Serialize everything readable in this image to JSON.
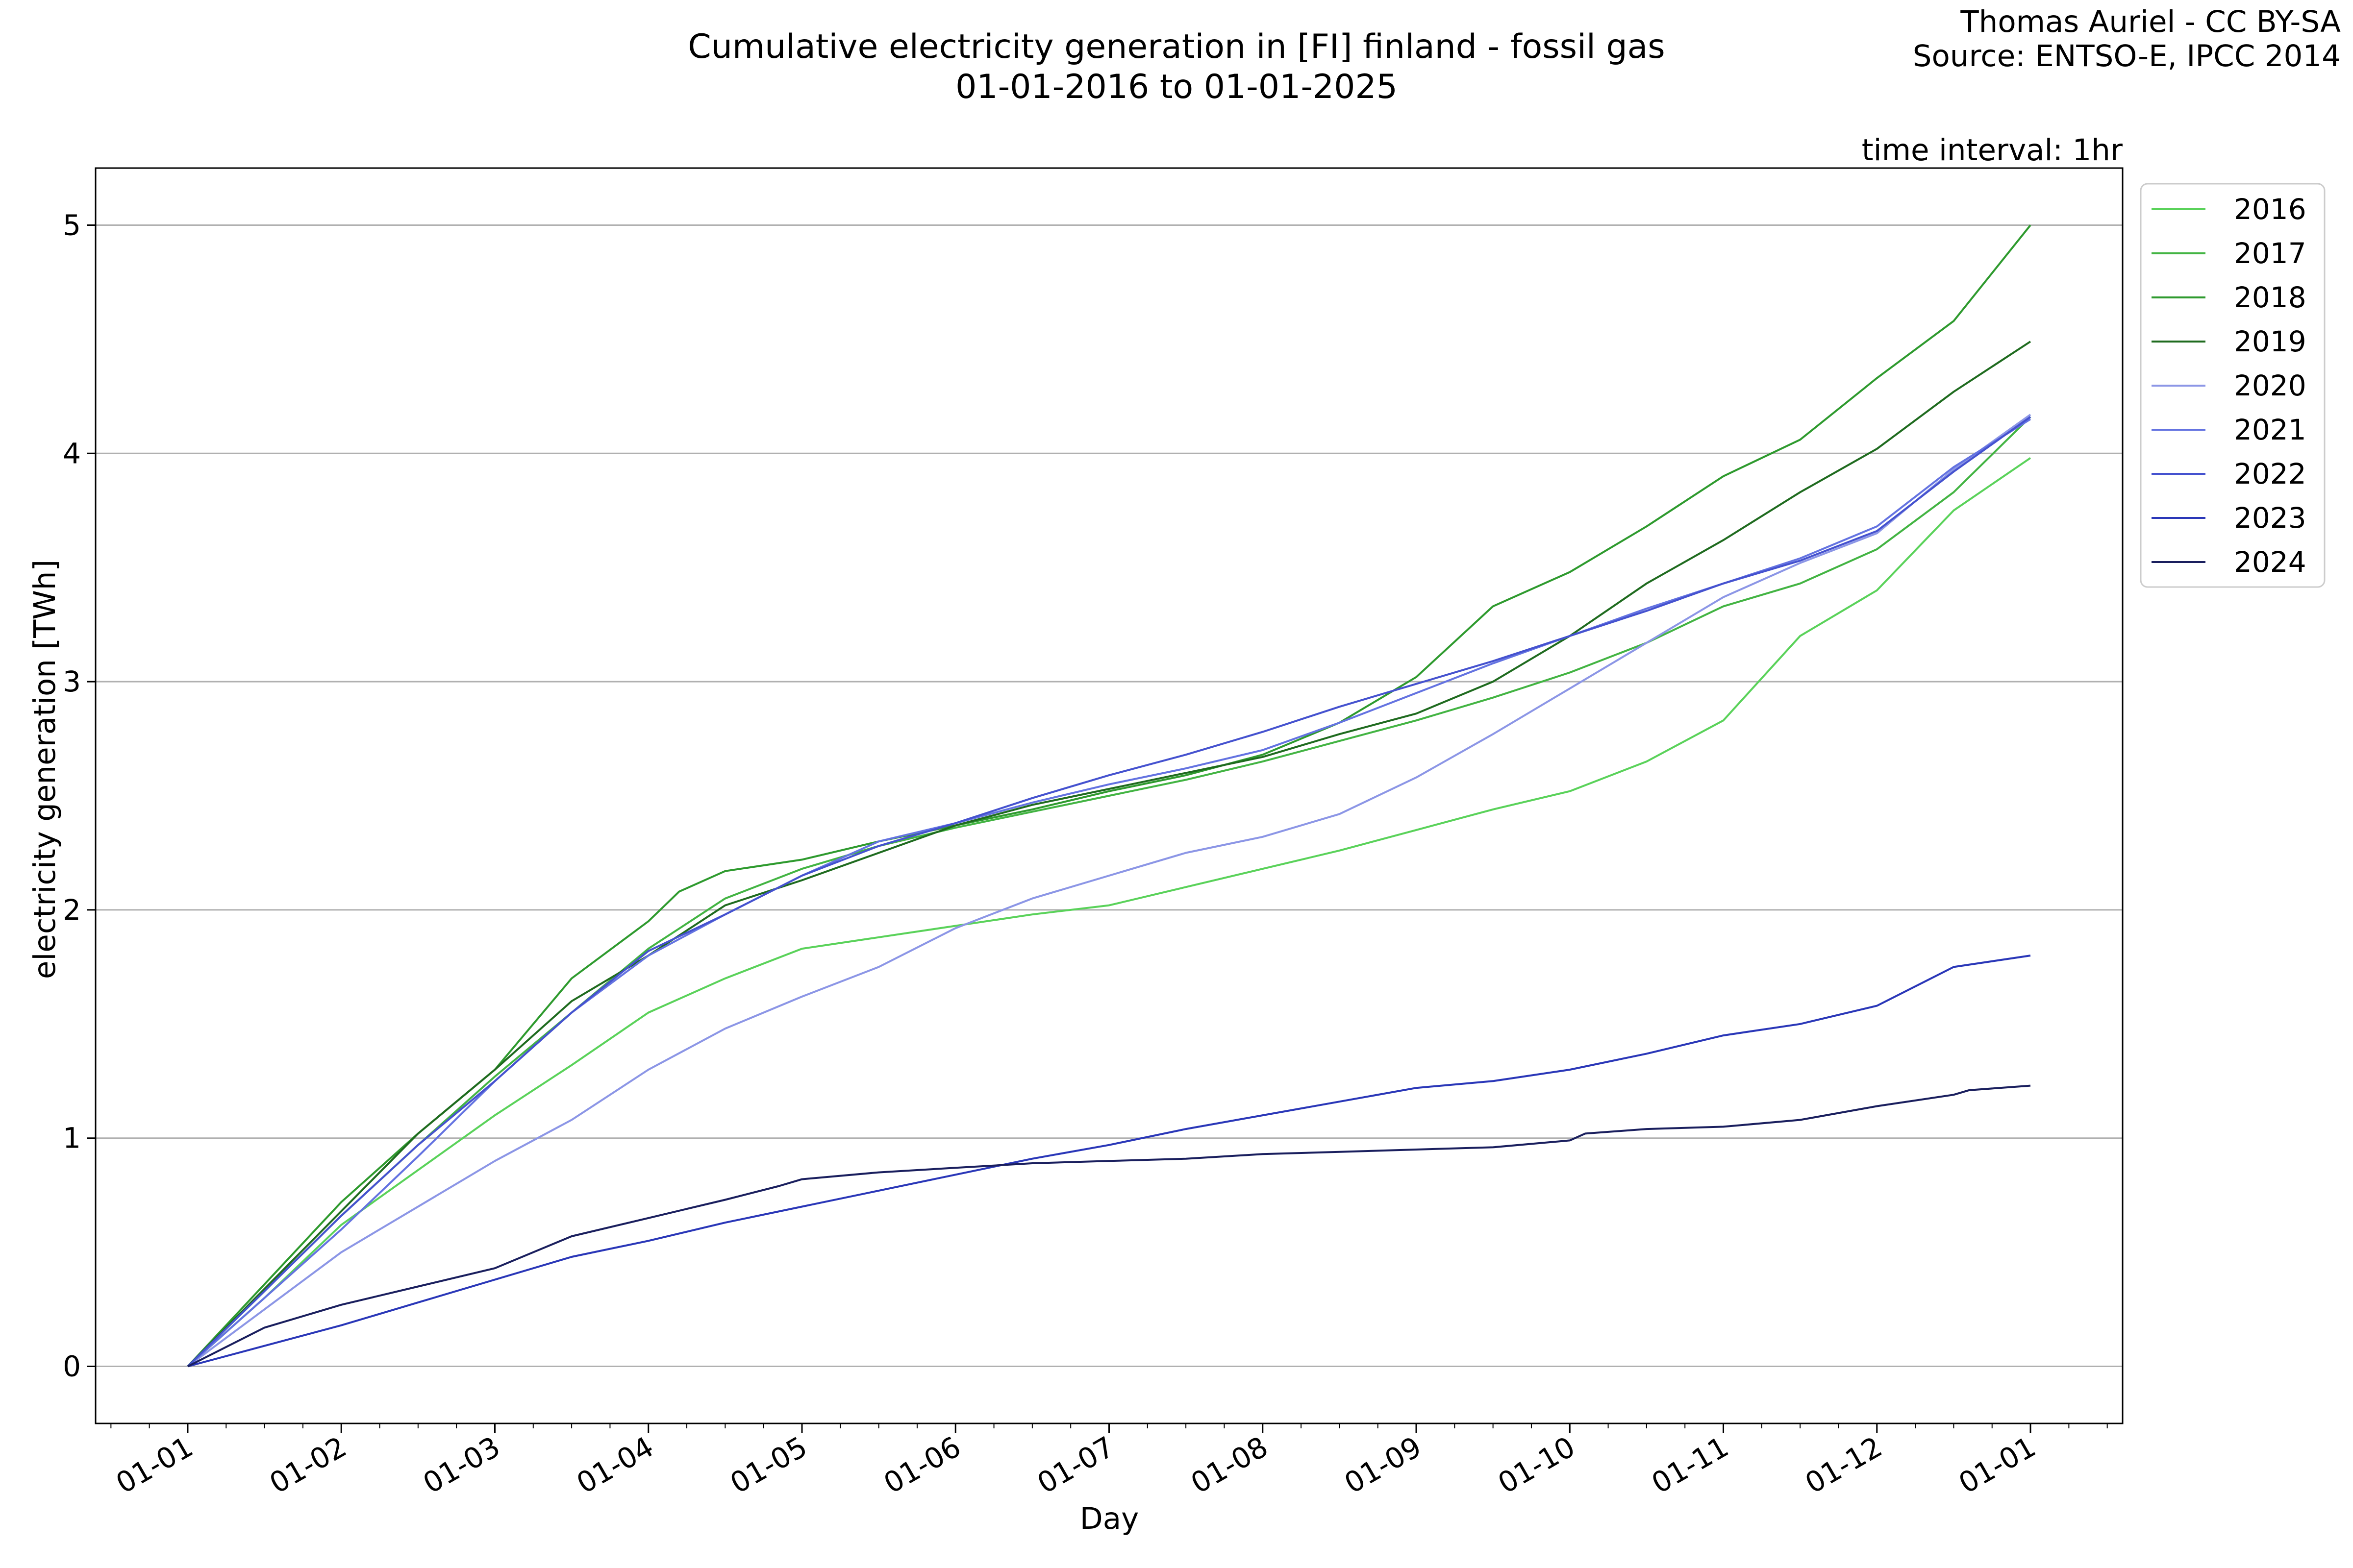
{
  "chart_data": {
    "type": "line",
    "title": "Cumulative electricity generation in [FI] finland - fossil gas",
    "subtitle": "01-01-2016 to 01-01-2025",
    "credit_author": "Thomas Auriel - CC BY-SA",
    "credit_source": "Source: ENTSO-E, IPCC 2014",
    "annotation": "time interval: 1hr",
    "xlabel": "Day",
    "ylabel": "electricity generation [TWh]",
    "x_unit": "month of year",
    "xlim": [
      0.4,
      13.6
    ],
    "ylim": [
      -0.25,
      5.25
    ],
    "x_ticks": [
      {
        "value": 1,
        "label": "01-01"
      },
      {
        "value": 2,
        "label": "01-02"
      },
      {
        "value": 3,
        "label": "01-03"
      },
      {
        "value": 4,
        "label": "01-04"
      },
      {
        "value": 5,
        "label": "01-05"
      },
      {
        "value": 6,
        "label": "01-06"
      },
      {
        "value": 7,
        "label": "01-07"
      },
      {
        "value": 8,
        "label": "01-08"
      },
      {
        "value": 9,
        "label": "01-09"
      },
      {
        "value": 10,
        "label": "01-10"
      },
      {
        "value": 11,
        "label": "01-11"
      },
      {
        "value": 12,
        "label": "01-12"
      },
      {
        "value": 13,
        "label": "01-01"
      }
    ],
    "y_ticks": [
      0,
      1,
      2,
      3,
      4,
      5
    ],
    "grid": "horizontal",
    "legend_position": "outside-top-right",
    "series": [
      {
        "name": "2016",
        "color": "#5ad25a",
        "points": [
          [
            1,
            0
          ],
          [
            1.5,
            0.3
          ],
          [
            2,
            0.62
          ],
          [
            2.5,
            0.86
          ],
          [
            3,
            1.1
          ],
          [
            3.5,
            1.32
          ],
          [
            4,
            1.55
          ],
          [
            4.5,
            1.7
          ],
          [
            5,
            1.83
          ],
          [
            5.5,
            1.88
          ],
          [
            6,
            1.93
          ],
          [
            6.5,
            1.98
          ],
          [
            7,
            2.02
          ],
          [
            7.5,
            2.1
          ],
          [
            8,
            2.18
          ],
          [
            8.5,
            2.26
          ],
          [
            9,
            2.35
          ],
          [
            9.5,
            2.44
          ],
          [
            10,
            2.52
          ],
          [
            10.5,
            2.65
          ],
          [
            11,
            2.83
          ],
          [
            11.5,
            3.2
          ],
          [
            12,
            3.4
          ],
          [
            12.5,
            3.75
          ],
          [
            13,
            3.98
          ]
        ]
      },
      {
        "name": "2017",
        "color": "#43b443",
        "points": [
          [
            1,
            0
          ],
          [
            1.5,
            0.33
          ],
          [
            2,
            0.66
          ],
          [
            2.5,
            0.97
          ],
          [
            3,
            1.27
          ],
          [
            3.5,
            1.55
          ],
          [
            4,
            1.83
          ],
          [
            4.5,
            2.05
          ],
          [
            5,
            2.18
          ],
          [
            5.5,
            2.28
          ],
          [
            6,
            2.36
          ],
          [
            6.5,
            2.43
          ],
          [
            7,
            2.5
          ],
          [
            7.5,
            2.57
          ],
          [
            8,
            2.65
          ],
          [
            8.5,
            2.74
          ],
          [
            9,
            2.83
          ],
          [
            9.5,
            2.93
          ],
          [
            10,
            3.04
          ],
          [
            10.5,
            3.17
          ],
          [
            11,
            3.33
          ],
          [
            11.5,
            3.43
          ],
          [
            12,
            3.58
          ],
          [
            12.5,
            3.83
          ],
          [
            13,
            4.16
          ]
        ]
      },
      {
        "name": "2018",
        "color": "#2e9a2e",
        "points": [
          [
            1,
            0
          ],
          [
            1.5,
            0.36
          ],
          [
            2,
            0.72
          ],
          [
            2.5,
            1.02
          ],
          [
            3,
            1.3
          ],
          [
            3.5,
            1.7
          ],
          [
            4,
            1.95
          ],
          [
            4.2,
            2.08
          ],
          [
            4.5,
            2.17
          ],
          [
            5,
            2.22
          ],
          [
            5.5,
            2.3
          ],
          [
            6,
            2.37
          ],
          [
            6.5,
            2.44
          ],
          [
            7,
            2.52
          ],
          [
            7.5,
            2.59
          ],
          [
            8,
            2.68
          ],
          [
            8.5,
            2.82
          ],
          [
            9,
            3.02
          ],
          [
            9.5,
            3.33
          ],
          [
            10,
            3.48
          ],
          [
            10.5,
            3.68
          ],
          [
            11,
            3.9
          ],
          [
            11.5,
            4.06
          ],
          [
            12,
            4.33
          ],
          [
            12.5,
            4.58
          ],
          [
            13,
            5.0
          ]
        ]
      },
      {
        "name": "2019",
        "color": "#1f6b1f",
        "points": [
          [
            1,
            0
          ],
          [
            1.5,
            0.34
          ],
          [
            2,
            0.68
          ],
          [
            2.5,
            1.02
          ],
          [
            3,
            1.3
          ],
          [
            3.5,
            1.6
          ],
          [
            4,
            1.8
          ],
          [
            4.5,
            2.02
          ],
          [
            5,
            2.13
          ],
          [
            5.5,
            2.25
          ],
          [
            6,
            2.37
          ],
          [
            6.5,
            2.46
          ],
          [
            7,
            2.53
          ],
          [
            7.5,
            2.6
          ],
          [
            8,
            2.67
          ],
          [
            8.5,
            2.77
          ],
          [
            9,
            2.86
          ],
          [
            9.5,
            3.0
          ],
          [
            10,
            3.2
          ],
          [
            10.5,
            3.43
          ],
          [
            11,
            3.62
          ],
          [
            11.5,
            3.83
          ],
          [
            12,
            4.02
          ],
          [
            12.5,
            4.27
          ],
          [
            13,
            4.49
          ]
        ]
      },
      {
        "name": "2020",
        "color": "#8c96e6",
        "points": [
          [
            1,
            0
          ],
          [
            1.5,
            0.25
          ],
          [
            2,
            0.5
          ],
          [
            2.5,
            0.7
          ],
          [
            3,
            0.9
          ],
          [
            3.5,
            1.08
          ],
          [
            4,
            1.3
          ],
          [
            4.5,
            1.48
          ],
          [
            5,
            1.62
          ],
          [
            5.5,
            1.75
          ],
          [
            6,
            1.92
          ],
          [
            6.5,
            2.05
          ],
          [
            7,
            2.15
          ],
          [
            7.5,
            2.25
          ],
          [
            8,
            2.32
          ],
          [
            8.5,
            2.42
          ],
          [
            9,
            2.58
          ],
          [
            9.5,
            2.77
          ],
          [
            10,
            2.97
          ],
          [
            10.5,
            3.17
          ],
          [
            11,
            3.37
          ],
          [
            11.5,
            3.52
          ],
          [
            12,
            3.65
          ],
          [
            12.5,
            3.93
          ],
          [
            13,
            4.17
          ]
        ]
      },
      {
        "name": "2021",
        "color": "#6473e1",
        "points": [
          [
            1,
            0
          ],
          [
            1.5,
            0.3
          ],
          [
            2,
            0.6
          ],
          [
            2.5,
            0.92
          ],
          [
            3,
            1.25
          ],
          [
            3.5,
            1.55
          ],
          [
            4,
            1.8
          ],
          [
            4.5,
            1.98
          ],
          [
            5,
            2.15
          ],
          [
            5.5,
            2.3
          ],
          [
            6,
            2.38
          ],
          [
            6.5,
            2.47
          ],
          [
            7,
            2.55
          ],
          [
            7.5,
            2.62
          ],
          [
            8,
            2.7
          ],
          [
            8.5,
            2.82
          ],
          [
            9,
            2.95
          ],
          [
            9.5,
            3.08
          ],
          [
            10,
            3.2
          ],
          [
            10.5,
            3.32
          ],
          [
            11,
            3.43
          ],
          [
            11.5,
            3.54
          ],
          [
            12,
            3.68
          ],
          [
            12.5,
            3.94
          ],
          [
            13,
            4.15
          ]
        ]
      },
      {
        "name": "2022",
        "color": "#4552cf",
        "points": [
          [
            1,
            0
          ],
          [
            1.5,
            0.33
          ],
          [
            2,
            0.66
          ],
          [
            2.5,
            0.97
          ],
          [
            3,
            1.25
          ],
          [
            3.5,
            1.55
          ],
          [
            4,
            1.82
          ],
          [
            4.5,
            1.98
          ],
          [
            5,
            2.15
          ],
          [
            5.5,
            2.28
          ],
          [
            6,
            2.38
          ],
          [
            6.5,
            2.49
          ],
          [
            7,
            2.59
          ],
          [
            7.5,
            2.68
          ],
          [
            8,
            2.78
          ],
          [
            8.5,
            2.89
          ],
          [
            9,
            2.99
          ],
          [
            9.5,
            3.09
          ],
          [
            10,
            3.2
          ],
          [
            10.5,
            3.31
          ],
          [
            11,
            3.43
          ],
          [
            11.5,
            3.53
          ],
          [
            12,
            3.66
          ],
          [
            12.5,
            3.92
          ],
          [
            13,
            4.16
          ]
        ]
      },
      {
        "name": "2023",
        "color": "#2a37b8",
        "points": [
          [
            1,
            0
          ],
          [
            1.5,
            0.09
          ],
          [
            2,
            0.18
          ],
          [
            2.5,
            0.28
          ],
          [
            3,
            0.38
          ],
          [
            3.5,
            0.48
          ],
          [
            4,
            0.55
          ],
          [
            4.5,
            0.63
          ],
          [
            5,
            0.7
          ],
          [
            5.5,
            0.77
          ],
          [
            6,
            0.84
          ],
          [
            6.5,
            0.91
          ],
          [
            7,
            0.97
          ],
          [
            7.5,
            1.04
          ],
          [
            8,
            1.1
          ],
          [
            8.5,
            1.16
          ],
          [
            9,
            1.22
          ],
          [
            9.5,
            1.25
          ],
          [
            10,
            1.3
          ],
          [
            10.5,
            1.37
          ],
          [
            11,
            1.45
          ],
          [
            11.5,
            1.5
          ],
          [
            12,
            1.58
          ],
          [
            12.5,
            1.75
          ],
          [
            13,
            1.8
          ]
        ]
      },
      {
        "name": "2024",
        "color": "#1a1f5e",
        "points": [
          [
            1,
            0
          ],
          [
            1.5,
            0.17
          ],
          [
            2,
            0.27
          ],
          [
            2.5,
            0.35
          ],
          [
            3,
            0.43
          ],
          [
            3.5,
            0.57
          ],
          [
            4,
            0.65
          ],
          [
            4.5,
            0.73
          ],
          [
            4.85,
            0.79
          ],
          [
            5,
            0.82
          ],
          [
            5.5,
            0.85
          ],
          [
            6,
            0.87
          ],
          [
            6.5,
            0.89
          ],
          [
            7,
            0.9
          ],
          [
            7.5,
            0.91
          ],
          [
            8,
            0.93
          ],
          [
            8.5,
            0.94
          ],
          [
            9,
            0.95
          ],
          [
            9.5,
            0.96
          ],
          [
            10,
            0.99
          ],
          [
            10.1,
            1.02
          ],
          [
            10.5,
            1.04
          ],
          [
            11,
            1.05
          ],
          [
            11.5,
            1.08
          ],
          [
            12,
            1.14
          ],
          [
            12.5,
            1.19
          ],
          [
            12.6,
            1.21
          ],
          [
            13,
            1.23
          ]
        ]
      }
    ]
  }
}
